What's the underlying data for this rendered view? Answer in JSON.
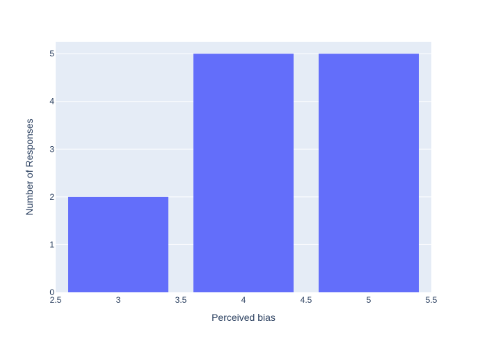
{
  "chart_data": {
    "type": "bar",
    "title": "",
    "xlabel": "Perceived bias",
    "ylabel": "Number of Responses",
    "x": [
      3,
      4,
      5
    ],
    "values": [
      2,
      5,
      5
    ],
    "bar_width": 0.8,
    "xlim": [
      2.5,
      5.5
    ],
    "ylim": [
      0,
      5.25
    ],
    "x_ticks": [
      {
        "value": 2.5,
        "label": "2.5"
      },
      {
        "value": 3,
        "label": "3"
      },
      {
        "value": 3.5,
        "label": "3.5"
      },
      {
        "value": 4,
        "label": "4"
      },
      {
        "value": 4.5,
        "label": "4.5"
      },
      {
        "value": 5,
        "label": "5"
      },
      {
        "value": 5.5,
        "label": "5.5"
      }
    ],
    "y_ticks": [
      {
        "value": 0,
        "label": "0"
      },
      {
        "value": 1,
        "label": "1"
      },
      {
        "value": 2,
        "label": "2"
      },
      {
        "value": 3,
        "label": "3"
      },
      {
        "value": 4,
        "label": "4"
      },
      {
        "value": 5,
        "label": "5"
      }
    ],
    "grid": true,
    "colors": {
      "bar": "#636efa",
      "plot_bg": "#e5ecf6",
      "grid": "#ffffff",
      "text": "#2a3f5f"
    }
  }
}
